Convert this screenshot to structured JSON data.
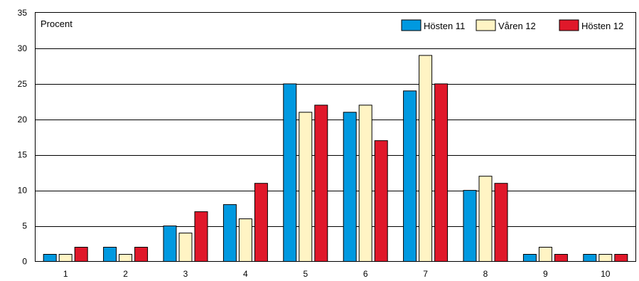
{
  "chart_data": {
    "type": "bar",
    "ylabel": "Procent",
    "categories": [
      "1",
      "2",
      "3",
      "4",
      "5",
      "6",
      "7",
      "8",
      "9",
      "10"
    ],
    "ylim": [
      0,
      35
    ],
    "yticks": [
      0,
      5,
      10,
      15,
      20,
      25,
      30,
      35
    ],
    "grid": true,
    "legend_position": "top-right",
    "series": [
      {
        "name": "Hösten 11",
        "color": "#0099e0",
        "values": [
          1,
          2,
          5,
          8,
          25,
          21,
          24,
          10,
          1,
          1
        ]
      },
      {
        "name": "Våren 12",
        "color": "#fff4c4",
        "values": [
          1,
          1,
          4,
          6,
          21,
          22,
          29,
          12,
          2,
          1
        ]
      },
      {
        "name": "Hösten 12",
        "color": "#e0182a",
        "values": [
          2,
          2,
          7,
          11,
          22,
          17,
          25,
          11,
          1,
          1
        ]
      }
    ]
  }
}
